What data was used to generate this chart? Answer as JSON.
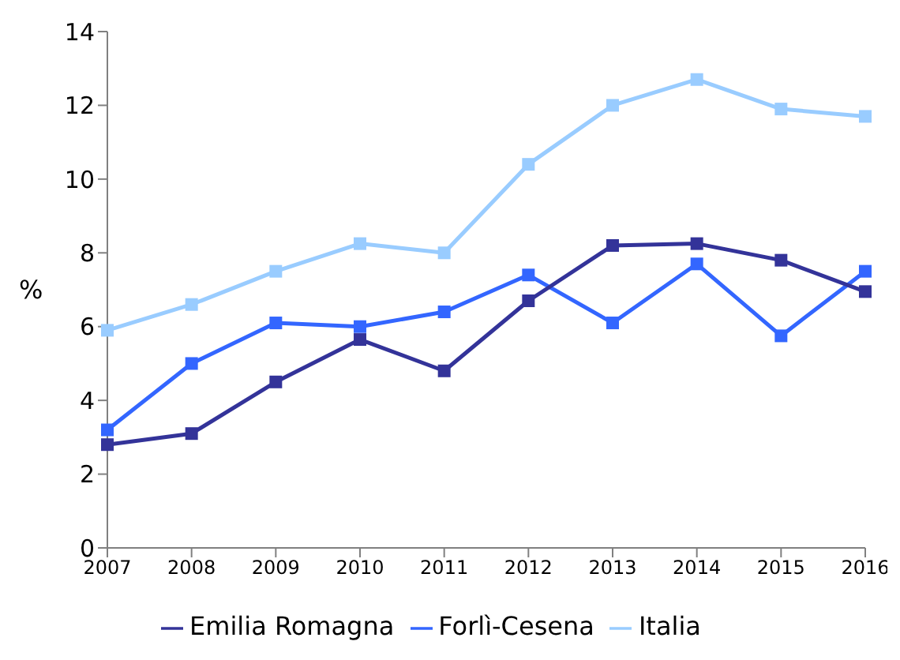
{
  "chart_data": {
    "type": "line",
    "ylabel": "%",
    "categories": [
      "2007",
      "2008",
      "2009",
      "2010",
      "2011",
      "2012",
      "2013",
      "2014",
      "2015",
      "2016"
    ],
    "series": [
      {
        "name": "Forlì-Cesena",
        "color": "#3366ff",
        "values": [
          3.2,
          5.0,
          6.1,
          6.0,
          6.4,
          7.4,
          6.1,
          7.7,
          5.75,
          7.5
        ]
      },
      {
        "name": "Emilia Romagna",
        "color": "#333399",
        "values": [
          2.8,
          3.1,
          4.5,
          5.65,
          4.8,
          6.7,
          8.2,
          8.25,
          7.8,
          6.95
        ]
      },
      {
        "name": "Italia",
        "color": "#99ccff",
        "values": [
          5.9,
          6.6,
          7.5,
          8.25,
          8.0,
          10.4,
          12.0,
          12.7,
          11.9,
          11.7
        ]
      }
    ],
    "ylim": [
      0,
      14
    ],
    "yticks": [
      0,
      2,
      4,
      6,
      8,
      10,
      12,
      14
    ],
    "grid": false,
    "legend": "bottom",
    "marker": "square",
    "line_style": "solid"
  }
}
